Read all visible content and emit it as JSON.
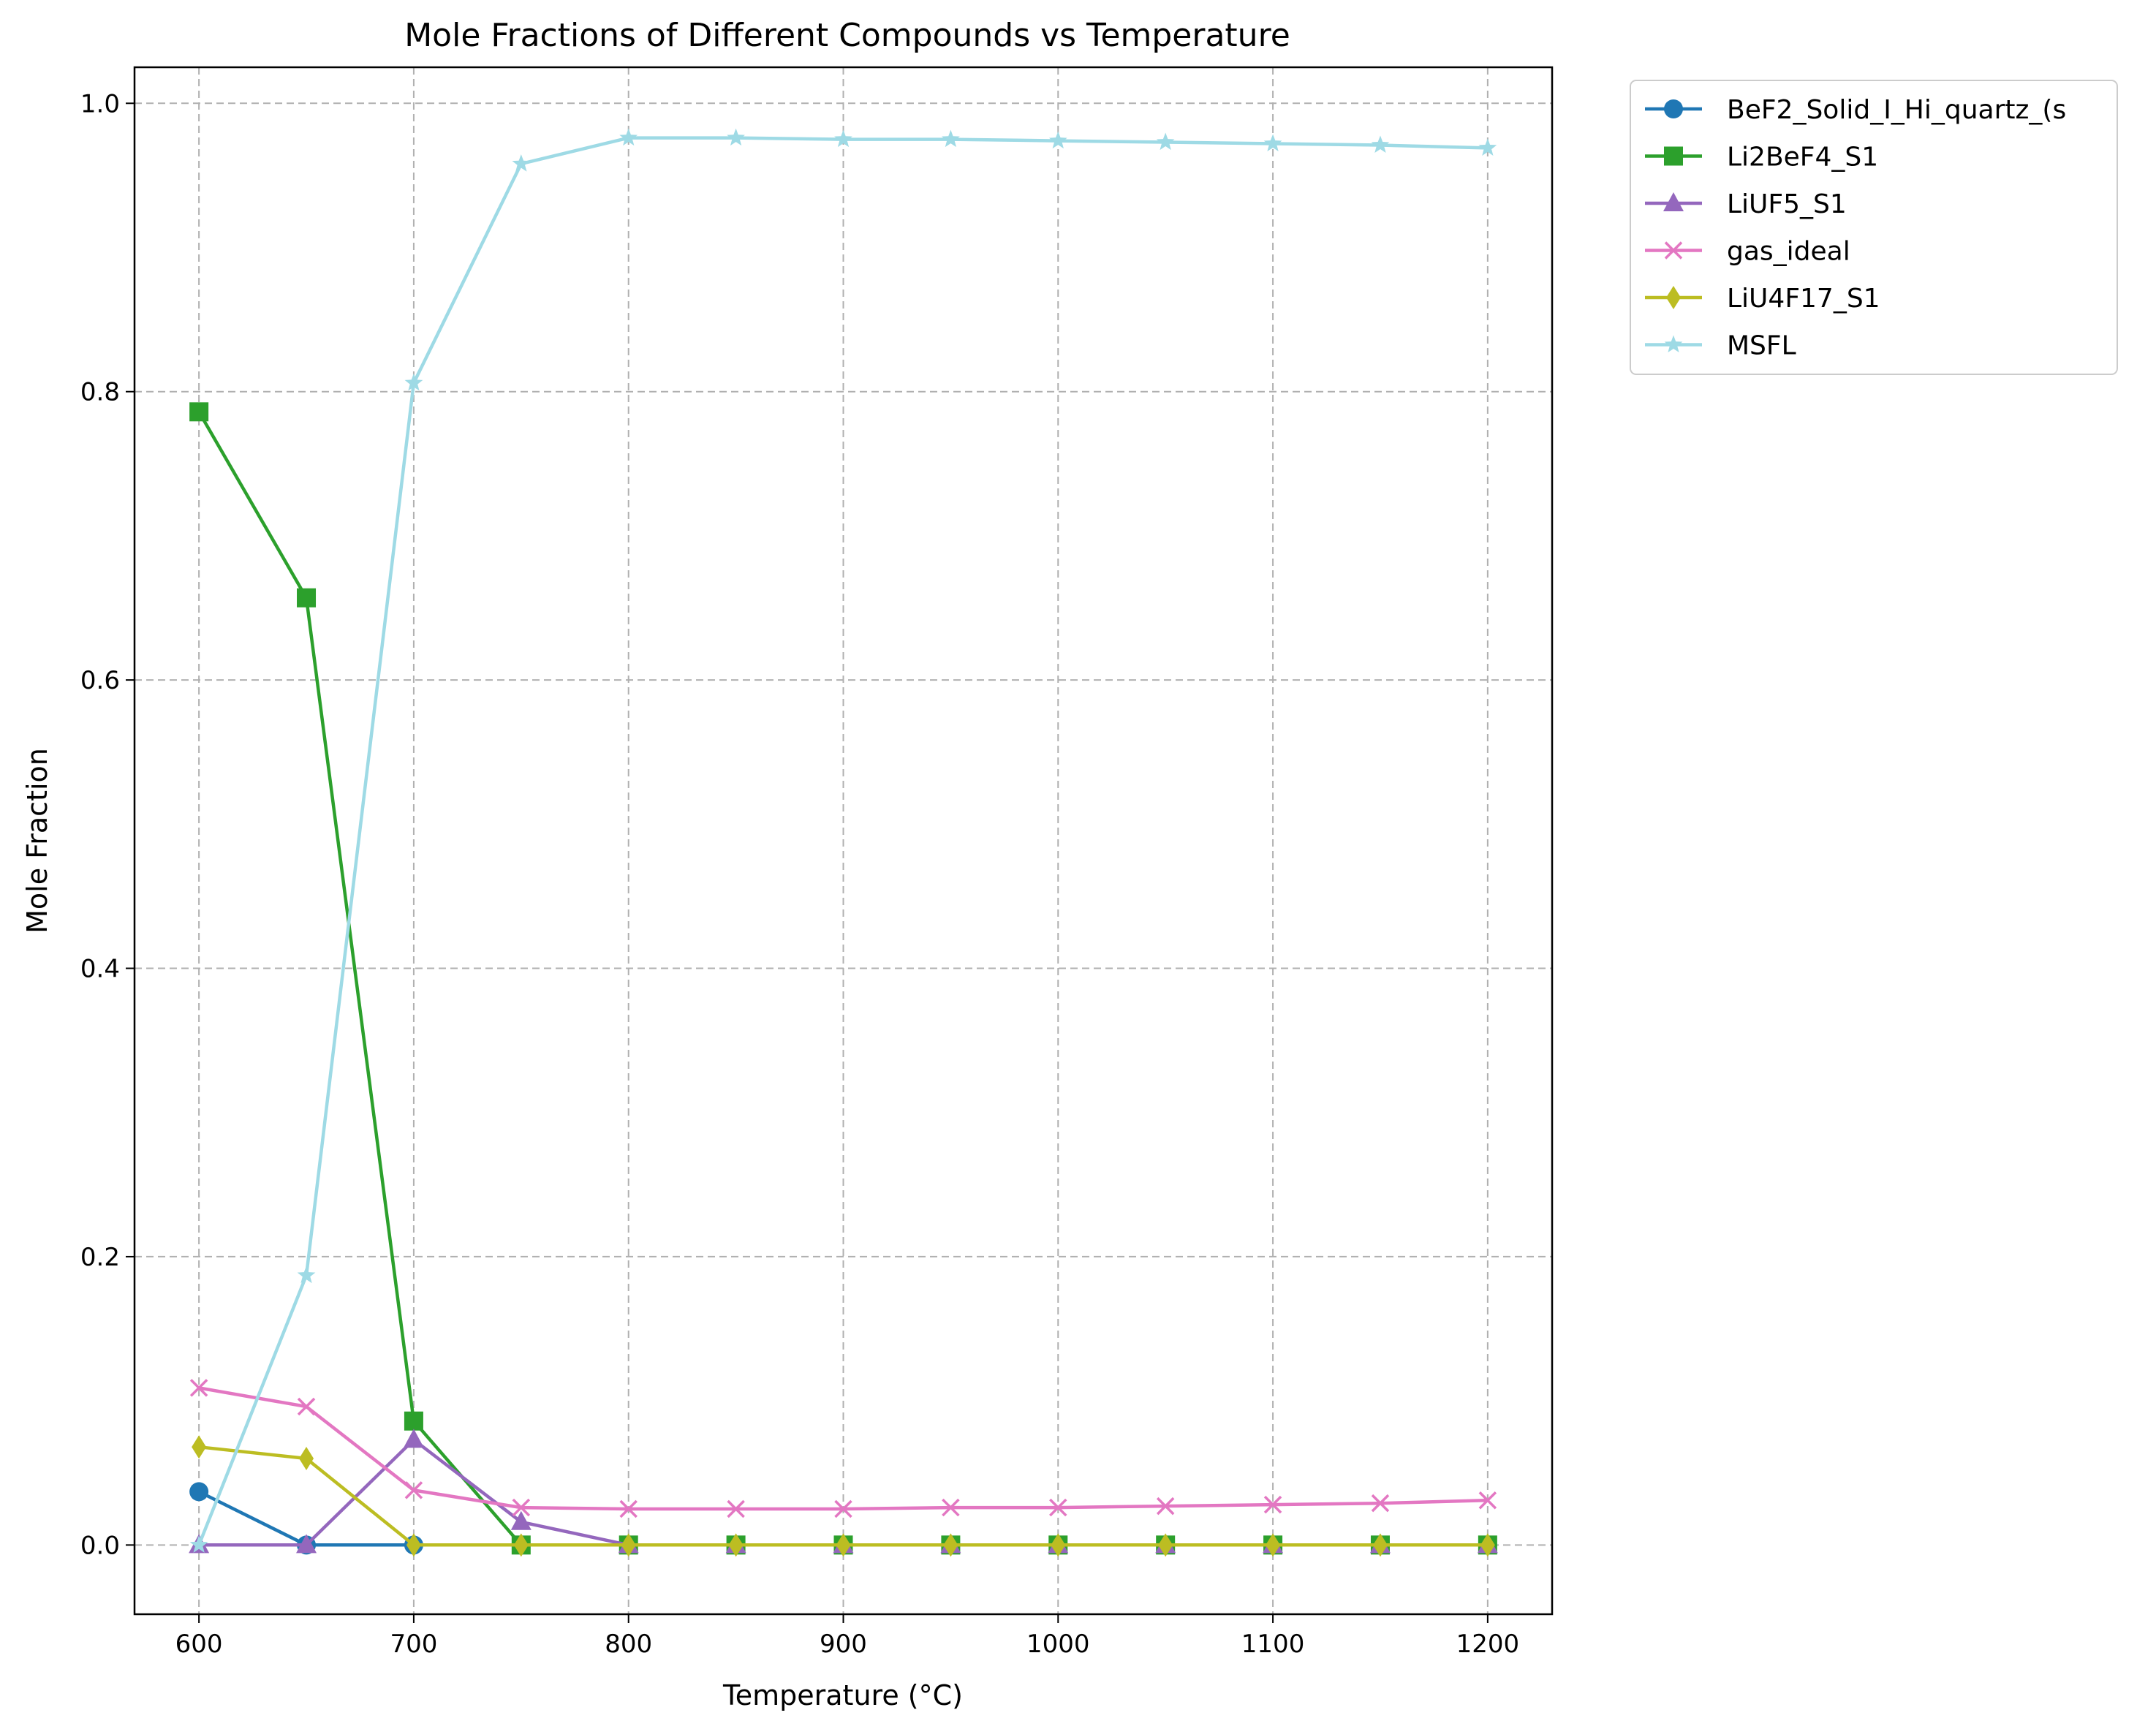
{
  "chart_data": {
    "type": "line",
    "title": "Mole Fractions of Different Compounds vs Temperature",
    "xlabel": "Temperature (°C)",
    "ylabel": "Mole Fraction",
    "xlim": [
      570,
      1230
    ],
    "ylim": [
      -0.048,
      1.025
    ],
    "xticks": [
      600,
      700,
      800,
      900,
      1000,
      1100,
      1200
    ],
    "yticks": [
      0.0,
      0.2,
      0.4,
      0.6,
      0.8,
      1.0
    ],
    "xtick_labels": [
      "600",
      "700",
      "800",
      "900",
      "1000",
      "1100",
      "1200"
    ],
    "ytick_labels": [
      "0.0",
      "0.2",
      "0.4",
      "0.6",
      "0.8",
      "1.0"
    ],
    "grid": true,
    "legend_position": "outside-top-right",
    "x": [
      600,
      650,
      700,
      750,
      800,
      850,
      900,
      950,
      1000,
      1050,
      1100,
      1150,
      1200
    ],
    "series": [
      {
        "name": "BeF2_Solid_I_Hi_quartz_(s",
        "color": "#1f77b4",
        "marker": "circle",
        "values": [
          0.037,
          0.0,
          0.0,
          0.0,
          0.0,
          0.0,
          0.0,
          0.0,
          0.0,
          0.0,
          0.0,
          0.0,
          0.0
        ]
      },
      {
        "name": "Li2BeF4_S1",
        "color": "#2ca02c",
        "marker": "square",
        "values": [
          0.786,
          0.657,
          0.086,
          0.0,
          0.0,
          0.0,
          0.0,
          0.0,
          0.0,
          0.0,
          0.0,
          0.0,
          0.0
        ]
      },
      {
        "name": "LiUF5_S1",
        "color": "#9467bd",
        "marker": "triangle",
        "values": [
          0.0,
          0.0,
          0.073,
          0.016,
          0.0,
          0.0,
          0.0,
          0.0,
          0.0,
          0.0,
          0.0,
          0.0,
          0.0
        ]
      },
      {
        "name": "gas_ideal",
        "color": "#e377c2",
        "marker": "x",
        "values": [
          0.109,
          0.096,
          0.038,
          0.026,
          0.025,
          0.025,
          0.025,
          0.026,
          0.026,
          0.027,
          0.028,
          0.029,
          0.031
        ]
      },
      {
        "name": "LiU4F17_S1",
        "color": "#bcbd22",
        "marker": "diamond",
        "values": [
          0.068,
          0.06,
          0.0,
          0.0,
          0.0,
          0.0,
          0.0,
          0.0,
          0.0,
          0.0,
          0.0,
          0.0,
          0.0
        ]
      },
      {
        "name": "MSFL",
        "color": "#9edae5",
        "marker": "star",
        "values": [
          0.0,
          0.187,
          0.806,
          0.958,
          0.976,
          0.976,
          0.975,
          0.975,
          0.974,
          0.973,
          0.972,
          0.971,
          0.969
        ]
      }
    ]
  }
}
